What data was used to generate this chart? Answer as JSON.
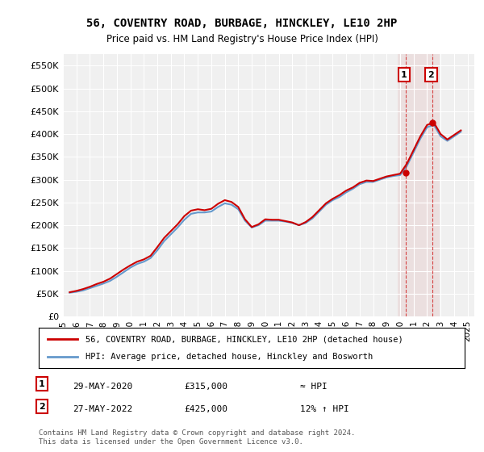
{
  "title": "56, COVENTRY ROAD, BURBAGE, HINCKLEY, LE10 2HP",
  "subtitle": "Price paid vs. HM Land Registry's House Price Index (HPI)",
  "ylabel_ticks": [
    "£0",
    "£50K",
    "£100K",
    "£150K",
    "£200K",
    "£250K",
    "£300K",
    "£350K",
    "£400K",
    "£450K",
    "£500K",
    "£550K"
  ],
  "ytick_values": [
    0,
    50000,
    100000,
    150000,
    200000,
    250000,
    300000,
    350000,
    400000,
    450000,
    500000,
    550000
  ],
  "ylim": [
    0,
    575000
  ],
  "xlim_start": 1995.0,
  "xlim_end": 2025.5,
  "background_color": "#ffffff",
  "plot_bg_color": "#f0f0f0",
  "grid_color": "#ffffff",
  "line_color_hpi": "#6699cc",
  "line_color_price": "#cc0000",
  "highlight_color": "#ddaaaa",
  "annotation_box_color": "#cc0000",
  "legend_box_color": "#000000",
  "point1": {
    "label": "1",
    "date": "29-MAY-2020",
    "price": 315000,
    "x": 2020.41,
    "hpi_relation": "≈ HPI"
  },
  "point2": {
    "label": "2",
    "date": "27-MAY-2022",
    "price": 425000,
    "x": 2022.41,
    "hpi_relation": "12% ↑ HPI"
  },
  "footer": "Contains HM Land Registry data © Crown copyright and database right 2024.\nThis data is licensed under the Open Government Licence v3.0.",
  "legend_line1": "56, COVENTRY ROAD, BURBAGE, HINCKLEY, LE10 2HP (detached house)",
  "legend_line2": "HPI: Average price, detached house, Hinckley and Bosworth",
  "hpi_data_x": [
    1995.5,
    1996.0,
    1996.5,
    1997.0,
    1997.5,
    1998.0,
    1998.5,
    1999.0,
    1999.5,
    2000.0,
    2000.5,
    2001.0,
    2001.5,
    2002.0,
    2002.5,
    2003.0,
    2003.5,
    2004.0,
    2004.5,
    2005.0,
    2005.5,
    2006.0,
    2006.5,
    2007.0,
    2007.5,
    2008.0,
    2008.5,
    2009.0,
    2009.5,
    2010.0,
    2010.5,
    2011.0,
    2011.5,
    2012.0,
    2012.5,
    2013.0,
    2013.5,
    2014.0,
    2014.5,
    2015.0,
    2015.5,
    2016.0,
    2016.5,
    2017.0,
    2017.5,
    2018.0,
    2018.5,
    2019.0,
    2019.5,
    2020.0,
    2020.5,
    2021.0,
    2021.5,
    2022.0,
    2022.5,
    2023.0,
    2023.5,
    2024.0,
    2024.5
  ],
  "hpi_data_y": [
    52000,
    54000,
    57000,
    62000,
    67000,
    72000,
    78000,
    87000,
    97000,
    107000,
    115000,
    120000,
    128000,
    145000,
    165000,
    180000,
    195000,
    212000,
    225000,
    228000,
    228000,
    230000,
    240000,
    248000,
    245000,
    235000,
    210000,
    195000,
    200000,
    210000,
    210000,
    210000,
    208000,
    205000,
    200000,
    205000,
    215000,
    230000,
    245000,
    255000,
    262000,
    272000,
    280000,
    290000,
    295000,
    295000,
    300000,
    305000,
    308000,
    310000,
    330000,
    360000,
    390000,
    415000,
    420000,
    395000,
    385000,
    395000,
    405000
  ],
  "price_data_x": [
    1995.5,
    1996.0,
    1996.5,
    1997.0,
    1997.5,
    1998.0,
    1998.5,
    1999.0,
    1999.5,
    2000.0,
    2000.5,
    2001.0,
    2001.5,
    2002.0,
    2002.5,
    2003.0,
    2003.5,
    2004.0,
    2004.5,
    2005.0,
    2005.5,
    2006.0,
    2006.5,
    2007.0,
    2007.5,
    2008.0,
    2008.5,
    2009.0,
    2009.5,
    2010.0,
    2010.5,
    2011.0,
    2011.5,
    2012.0,
    2012.5,
    2013.0,
    2013.5,
    2014.0,
    2014.5,
    2015.0,
    2015.5,
    2016.0,
    2016.5,
    2017.0,
    2017.5,
    2018.0,
    2018.5,
    2019.0,
    2019.5,
    2020.0,
    2020.5,
    2021.0,
    2021.5,
    2022.0,
    2022.5,
    2023.0,
    2023.5,
    2024.0,
    2024.5
  ],
  "price_data_y": [
    53000,
    56000,
    60000,
    65000,
    71000,
    76000,
    83000,
    93000,
    103000,
    112000,
    120000,
    125000,
    133000,
    152000,
    172000,
    187000,
    202000,
    220000,
    232000,
    235000,
    233000,
    236000,
    247000,
    255000,
    251000,
    240000,
    213000,
    196000,
    202000,
    213000,
    212000,
    212000,
    209000,
    206000,
    200000,
    207000,
    218000,
    233000,
    248000,
    258000,
    266000,
    276000,
    283000,
    293000,
    298000,
    297000,
    302000,
    307000,
    310000,
    313000,
    335000,
    365000,
    395000,
    420000,
    425000,
    400000,
    388000,
    398000,
    408000
  ],
  "xtick_years": [
    1995,
    1996,
    1997,
    1998,
    1999,
    2000,
    2001,
    2002,
    2003,
    2004,
    2005,
    2006,
    2007,
    2008,
    2009,
    2010,
    2011,
    2012,
    2013,
    2014,
    2015,
    2016,
    2017,
    2018,
    2019,
    2020,
    2021,
    2022,
    2023,
    2024,
    2025
  ]
}
